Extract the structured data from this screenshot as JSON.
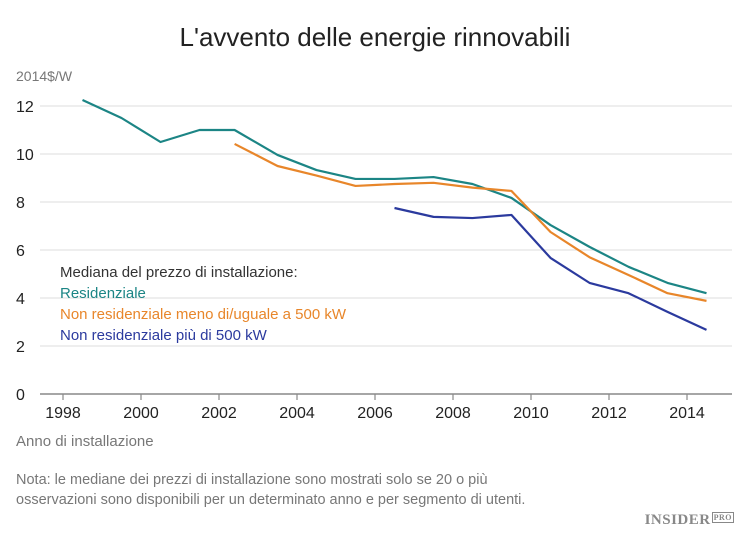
{
  "chart_data": {
    "type": "line",
    "title": "L'avvento delle energie rinnovabili",
    "ylabel": "2014$/W",
    "xlabel": "Anno di installazione",
    "ylim": [
      0,
      12
    ],
    "xlim": [
      1998,
      2015
    ],
    "yticks": [
      0,
      2,
      4,
      6,
      8,
      10,
      12
    ],
    "xticks": [
      1998,
      2000,
      2002,
      2004,
      2006,
      2008,
      2010,
      2012,
      2014
    ],
    "grid": true,
    "legend_title": "Mediana del prezzo di installazione:",
    "legend_position": "left",
    "series": [
      {
        "name": "Residenziale",
        "color": "#1c8585",
        "x": [
          1998.5,
          1999.5,
          2000.5,
          2001.5,
          2002.4,
          2003.5,
          2004.5,
          2005.5,
          2006.5,
          2007.5,
          2008.5,
          2009.5,
          2010.5,
          2011.5,
          2012.5,
          2013.5,
          2014.5
        ],
        "y": [
          12.25,
          11.5,
          10.5,
          11.0,
          11.0,
          9.96,
          9.33,
          8.96,
          8.96,
          9.04,
          8.75,
          8.17,
          7.04,
          6.13,
          5.3,
          4.63,
          4.2
        ]
      },
      {
        "name": "Non residenziale meno di/uguale a 500 kW",
        "color": "#e8862a",
        "x": [
          2002.4,
          2003.5,
          2004.5,
          2005.5,
          2006.5,
          2007.5,
          2008.5,
          2009.5,
          2010.5,
          2011.5,
          2012.5,
          2013.5,
          2014.5
        ],
        "y": [
          10.42,
          9.5,
          9.1,
          8.67,
          8.75,
          8.8,
          8.6,
          8.46,
          6.75,
          5.7,
          4.96,
          4.2,
          3.88
        ]
      },
      {
        "name": "Non residenziale più di 500 kW",
        "color": "#2b3a9e",
        "x": [
          2006.5,
          2007.5,
          2008.5,
          2009.5,
          2010.5,
          2011.5,
          2012.5,
          2013.5,
          2014.5
        ],
        "y": [
          7.75,
          7.38,
          7.33,
          7.46,
          5.67,
          4.63,
          4.2,
          3.42,
          2.67
        ]
      }
    ]
  },
  "note": "Nota: le mediane dei prezzi di installazione sono mostrati solo se 20 o più osservazioni sono disponibili per un determinato anno e per segmento di utenti.",
  "logo": {
    "main": "INSIDER",
    "sub": "PRO"
  }
}
